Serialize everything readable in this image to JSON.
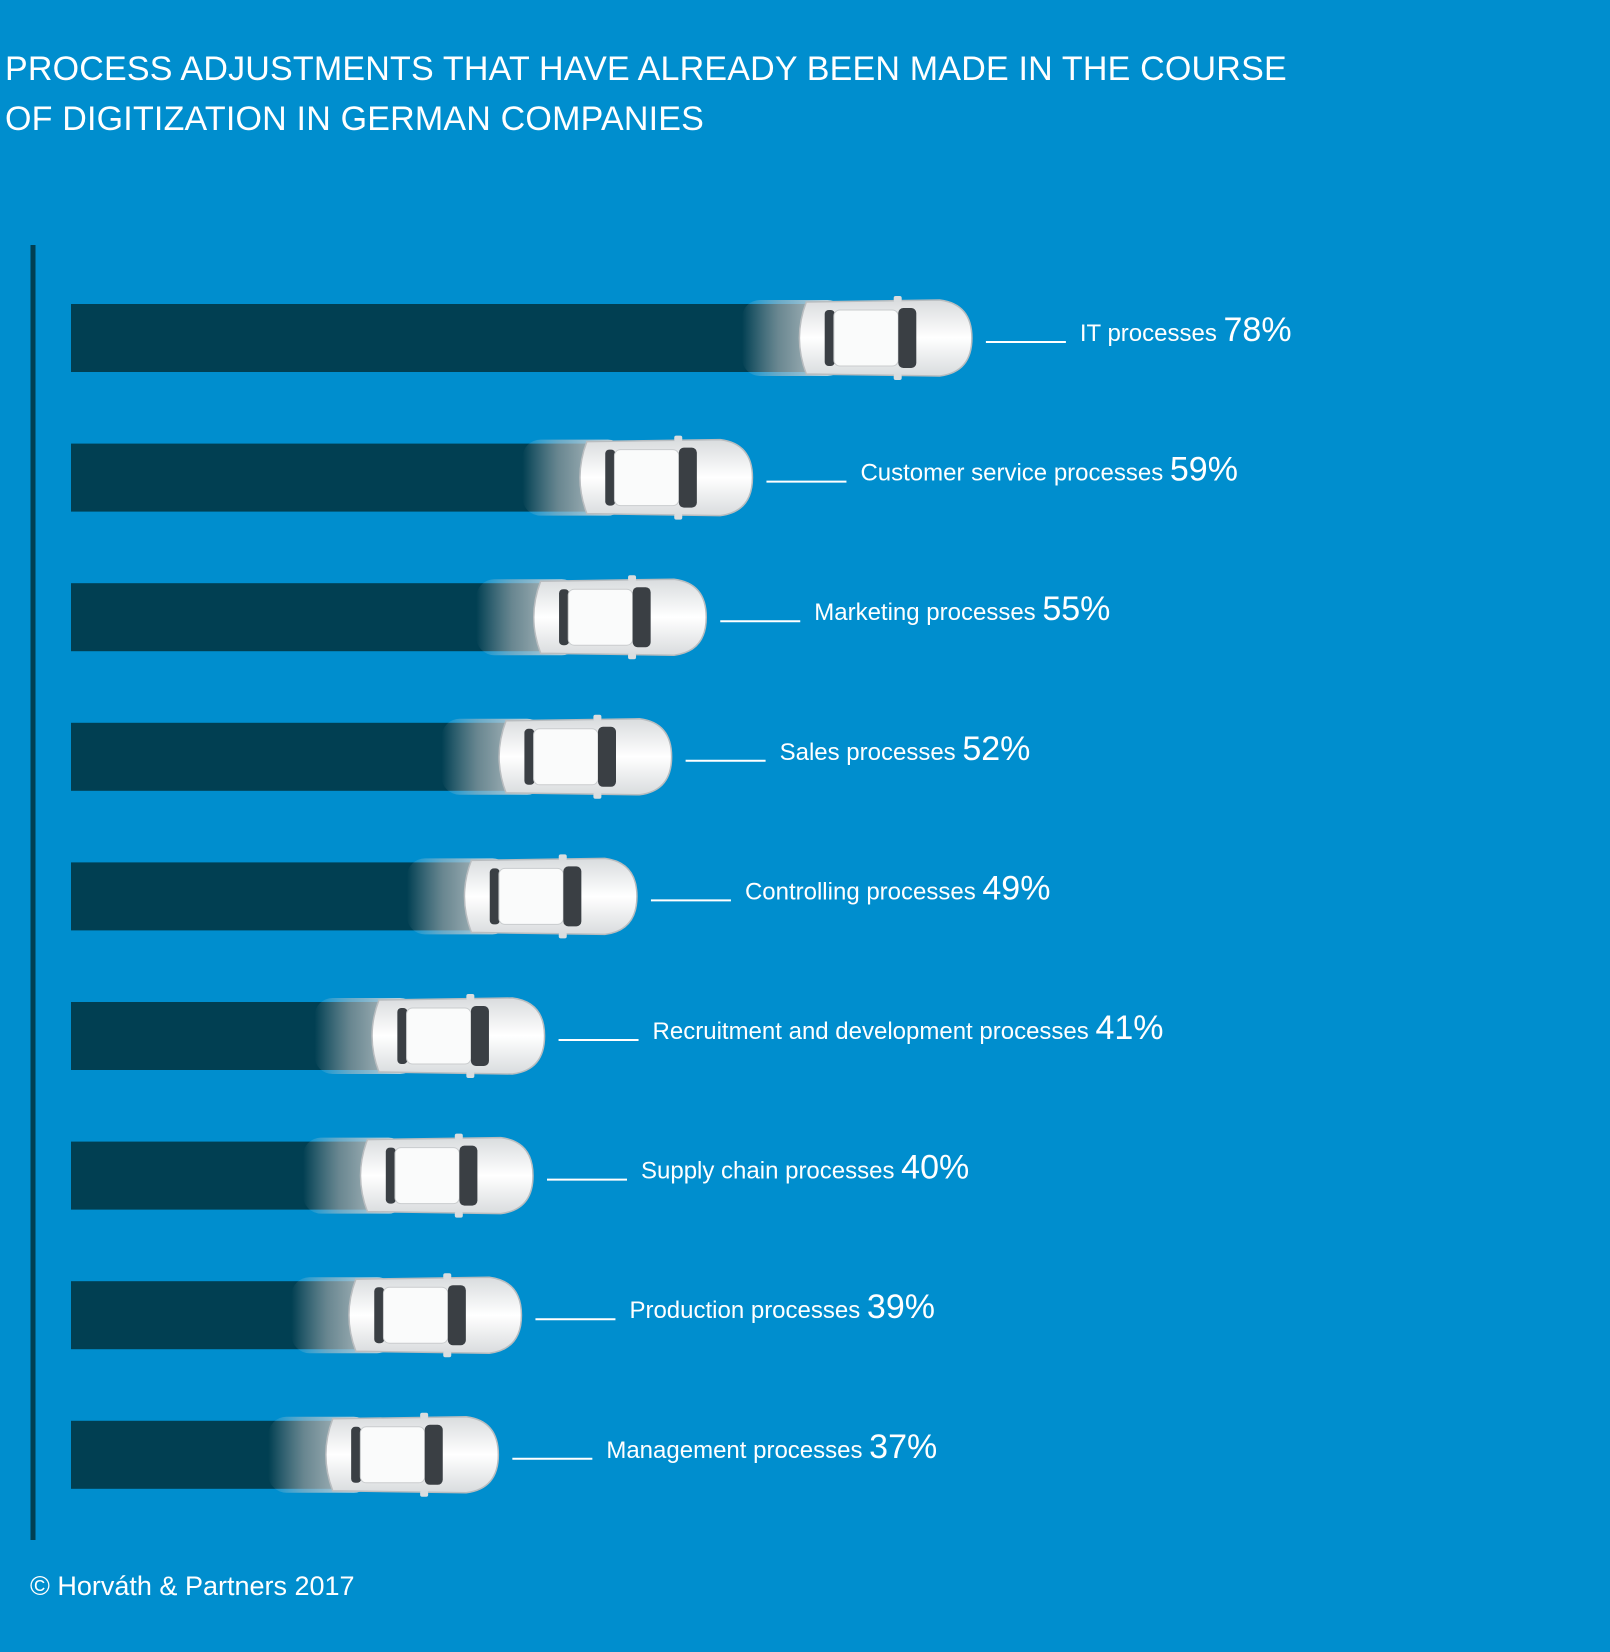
{
  "title_lines": [
    "PROCESS ADJUSTMENTS THAT HAVE ALREADY BEEN MADE IN THE COURSE",
    "OF DIGITIZATION IN GERMAN COMPANIES"
  ],
  "copyright": "© Horváth & Partners 2017",
  "colors": {
    "background": "#008ECE",
    "bar": "#013F52",
    "axis": "#013F52",
    "car_body": "#F2F3F4",
    "car_glass": "#3A3F44",
    "label": "#FFFFFF"
  },
  "chart_data": {
    "type": "bar",
    "orientation": "horizontal",
    "title": "PROCESS ADJUSTMENTS THAT HAVE ALREADY BEEN MADE IN THE COURSE OF DIGITIZATION IN GERMAN COMPANIES",
    "categories": [
      "IT processes",
      "Customer service processes",
      "Marketing processes",
      "Sales processes",
      "Controlling processes",
      "Recruitment and development processes",
      "Supply chain processes",
      "Production processes",
      "Management processes"
    ],
    "values": [
      78,
      59,
      55,
      52,
      49,
      41,
      40,
      39,
      37
    ],
    "value_labels": [
      "78%",
      "59%",
      "55%",
      "52%",
      "49%",
      "41%",
      "40%",
      "39%",
      "37%"
    ],
    "unit": "%",
    "xlim": [
      0,
      100
    ],
    "grid": false,
    "legend": "none",
    "bar_end_icon": "car-top-view-icon"
  }
}
